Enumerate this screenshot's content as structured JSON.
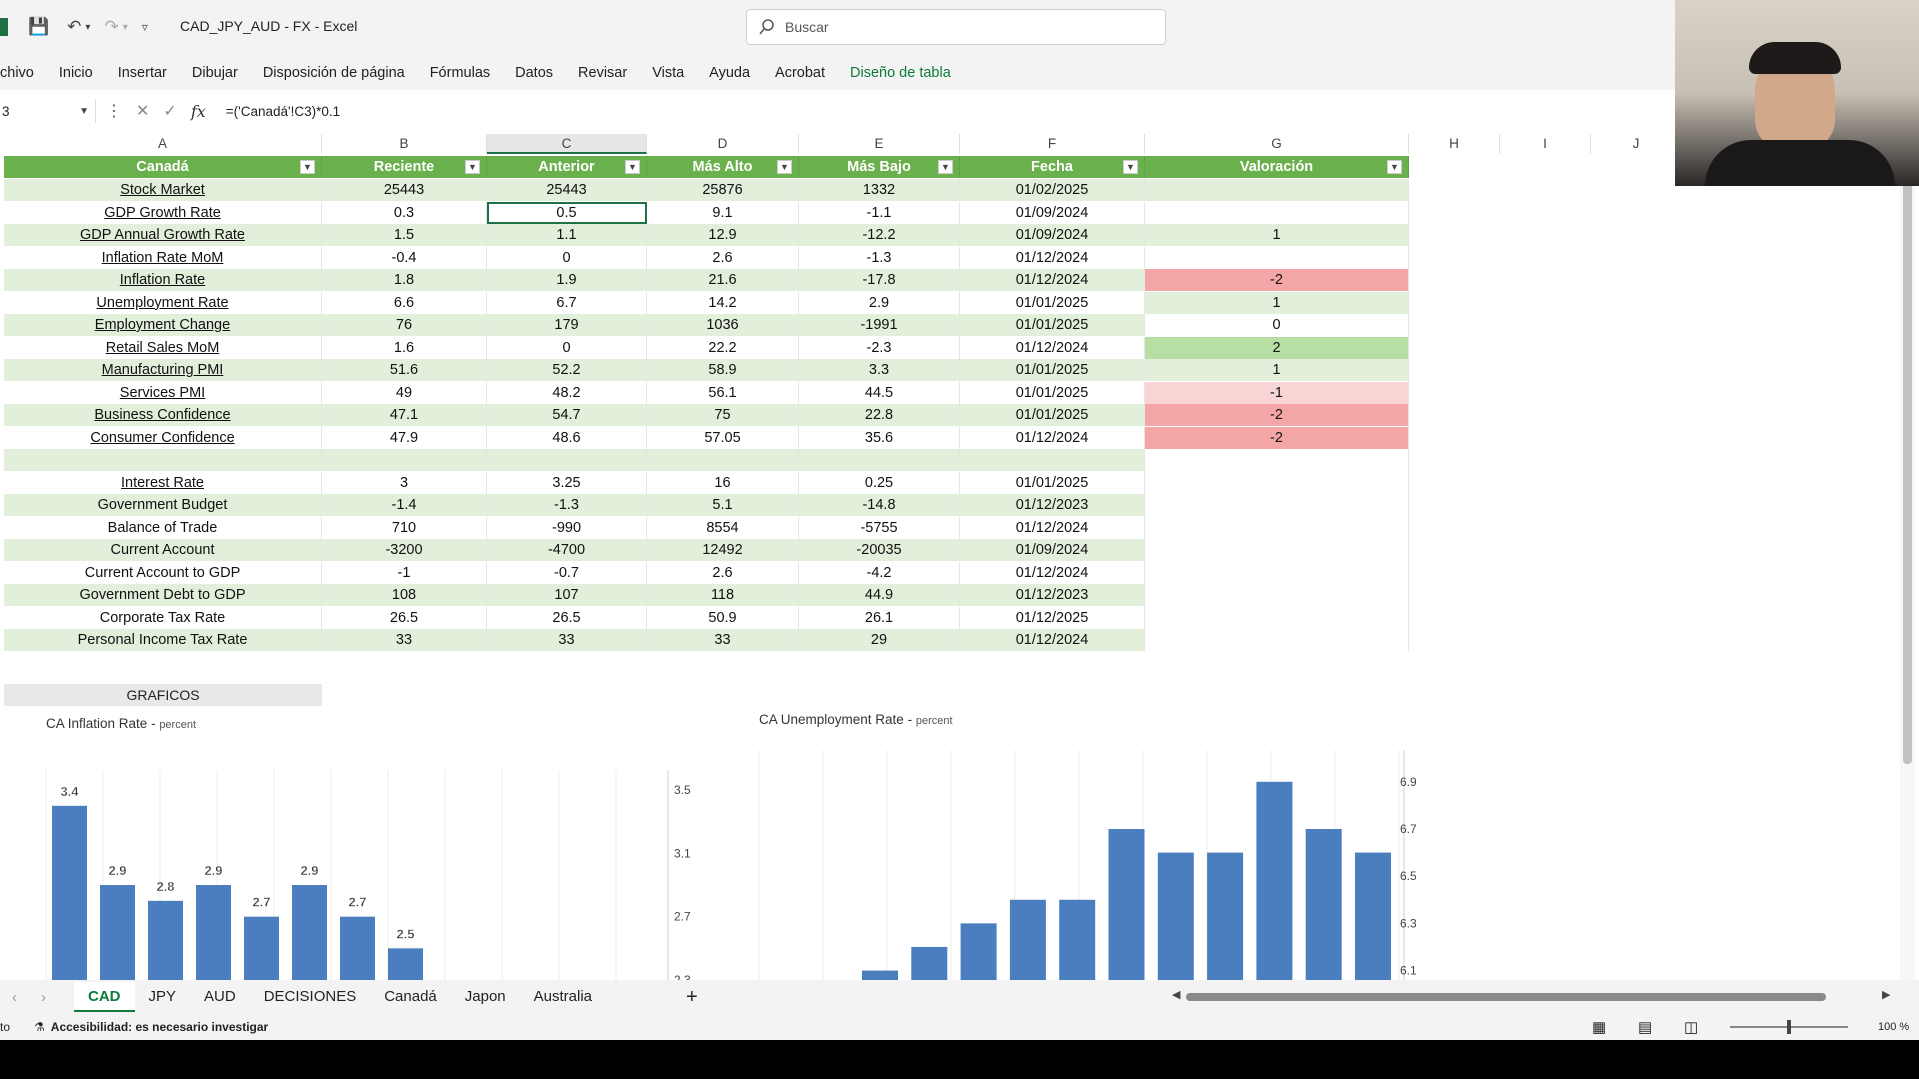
{
  "app": {
    "title": "CAD_JPY_AUD - FX  -  Excel",
    "search_placeholder": "Buscar"
  },
  "ribbon": [
    "chivo",
    "Inicio",
    "Insertar",
    "Dibujar",
    "Disposición de página",
    "Fórmulas",
    "Datos",
    "Revisar",
    "Vista",
    "Ayuda",
    "Acrobat",
    "Diseño de tabla"
  ],
  "formula_bar": {
    "name_box": "3",
    "formula": "=('Canadá'!C3)*0.1"
  },
  "columns": [
    "A",
    "B",
    "C",
    "D",
    "E",
    "F",
    "G",
    "H",
    "I",
    "J"
  ],
  "table": {
    "headers": [
      "Canadá",
      "Reciente",
      "Anterior",
      "Más Alto",
      "Más Bajo",
      "Fecha",
      "Valoración"
    ],
    "rows": [
      [
        "Stock Market",
        "25443",
        "25443",
        "25876",
        "1332",
        "01/02/2025",
        ""
      ],
      [
        "GDP Growth Rate",
        "0.3",
        "0.5",
        "9.1",
        "-1.1",
        "01/09/2024",
        ""
      ],
      [
        "GDP Annual Growth Rate",
        "1.5",
        "1.1",
        "12.9",
        "-12.2",
        "01/09/2024",
        "1"
      ],
      [
        "Inflation Rate MoM",
        "-0.4",
        "0",
        "2.6",
        "-1.3",
        "01/12/2024",
        ""
      ],
      [
        "Inflation Rate",
        "1.8",
        "1.9",
        "21.6",
        "-17.8",
        "01/12/2024",
        "-2"
      ],
      [
        "Unemployment Rate",
        "6.6",
        "6.7",
        "14.2",
        "2.9",
        "01/01/2025",
        "1"
      ],
      [
        "Employment Change",
        "76",
        "179",
        "1036",
        "-1991",
        "01/01/2025",
        "0"
      ],
      [
        "Retail Sales MoM",
        "1.6",
        "0",
        "22.2",
        "-2.3",
        "01/12/2024",
        "2"
      ],
      [
        "Manufacturing PMI",
        "51.6",
        "52.2",
        "58.9",
        "3.3",
        "01/01/2025",
        "1"
      ],
      [
        "Services PMI",
        "49",
        "48.2",
        "56.1",
        "44.5",
        "01/01/2025",
        "-1"
      ],
      [
        "Business Confidence",
        "47.1",
        "54.7",
        "75",
        "22.8",
        "01/01/2025",
        "-2"
      ],
      [
        "Consumer Confidence",
        "47.9",
        "48.6",
        "57.05",
        "35.6",
        "01/12/2024",
        "-2"
      ],
      [
        "",
        "",
        "",
        "",
        "",
        "",
        ""
      ],
      [
        "Interest Rate",
        "3",
        "3.25",
        "16",
        "0.25",
        "01/01/2025",
        ""
      ],
      [
        "Government Budget",
        "-1.4",
        "-1.3",
        "5.1",
        "-14.8",
        "01/12/2023",
        ""
      ],
      [
        "Balance of Trade",
        "710",
        "-990",
        "8554",
        "-5755",
        "01/12/2024",
        ""
      ],
      [
        "Current Account",
        "-3200",
        "-4700",
        "12492",
        "-20035",
        "01/09/2024",
        ""
      ],
      [
        "Current Account to GDP",
        "-1",
        "-0.7",
        "2.6",
        "-4.2",
        "01/12/2024",
        ""
      ],
      [
        "Government Debt to GDP",
        "108",
        "107",
        "118",
        "44.9",
        "01/12/2023",
        ""
      ],
      [
        "Corporate Tax Rate",
        "26.5",
        "26.5",
        "50.9",
        "26.1",
        "01/12/2025",
        ""
      ],
      [
        "Personal Income Tax Rate",
        "33",
        "33",
        "33",
        "29",
        "01/12/2024",
        ""
      ]
    ],
    "valoracion_colors": [
      "",
      "",
      "gr-light",
      "white",
      "red",
      "gr-light",
      "white",
      "gr-mid",
      "gr-light",
      "pink",
      "red",
      "red",
      "white",
      "white",
      "white",
      "white",
      "white",
      "white",
      "white",
      "white",
      "white"
    ],
    "linked_rows": [
      0,
      1,
      2,
      3,
      4,
      5,
      6,
      7,
      8,
      9,
      10,
      11,
      13
    ]
  },
  "graficos_label": "GRAFICOS",
  "chart_data": [
    {
      "type": "bar",
      "title": "CA Inflation Rate",
      "subtitle": "percent",
      "values": [
        3.4,
        2.9,
        2.8,
        2.9,
        2.7,
        2.9,
        2.7,
        2.5
      ],
      "data_labels": [
        "3.4",
        "2.9",
        "2.8",
        "2.9",
        "2.7",
        "2.9",
        "2.7",
        "2.5"
      ],
      "yticks": [
        "3.5",
        "3.1",
        "2.7",
        "2.3"
      ],
      "color": "#4a7ebf"
    },
    {
      "type": "bar",
      "title": "CA Unemployment Rate",
      "subtitle": "percent",
      "values": [
        6.1,
        6.2,
        6.3,
        6.4,
        6.4,
        6.7,
        6.6,
        6.6,
        6.9,
        6.7,
        6.6
      ],
      "yticks": [
        "6.9",
        "6.7",
        "6.5",
        "6.3",
        "6.1"
      ],
      "color": "#4a7ebf"
    }
  ],
  "sheet_tabs": [
    "CAD",
    "JPY",
    "AUD",
    "DECISIONES",
    "Canadá",
    "Japon",
    "Australia"
  ],
  "status": {
    "left": "to",
    "accessibility": "Accesibilidad: es necesario investigar",
    "zoom": "100 %"
  }
}
